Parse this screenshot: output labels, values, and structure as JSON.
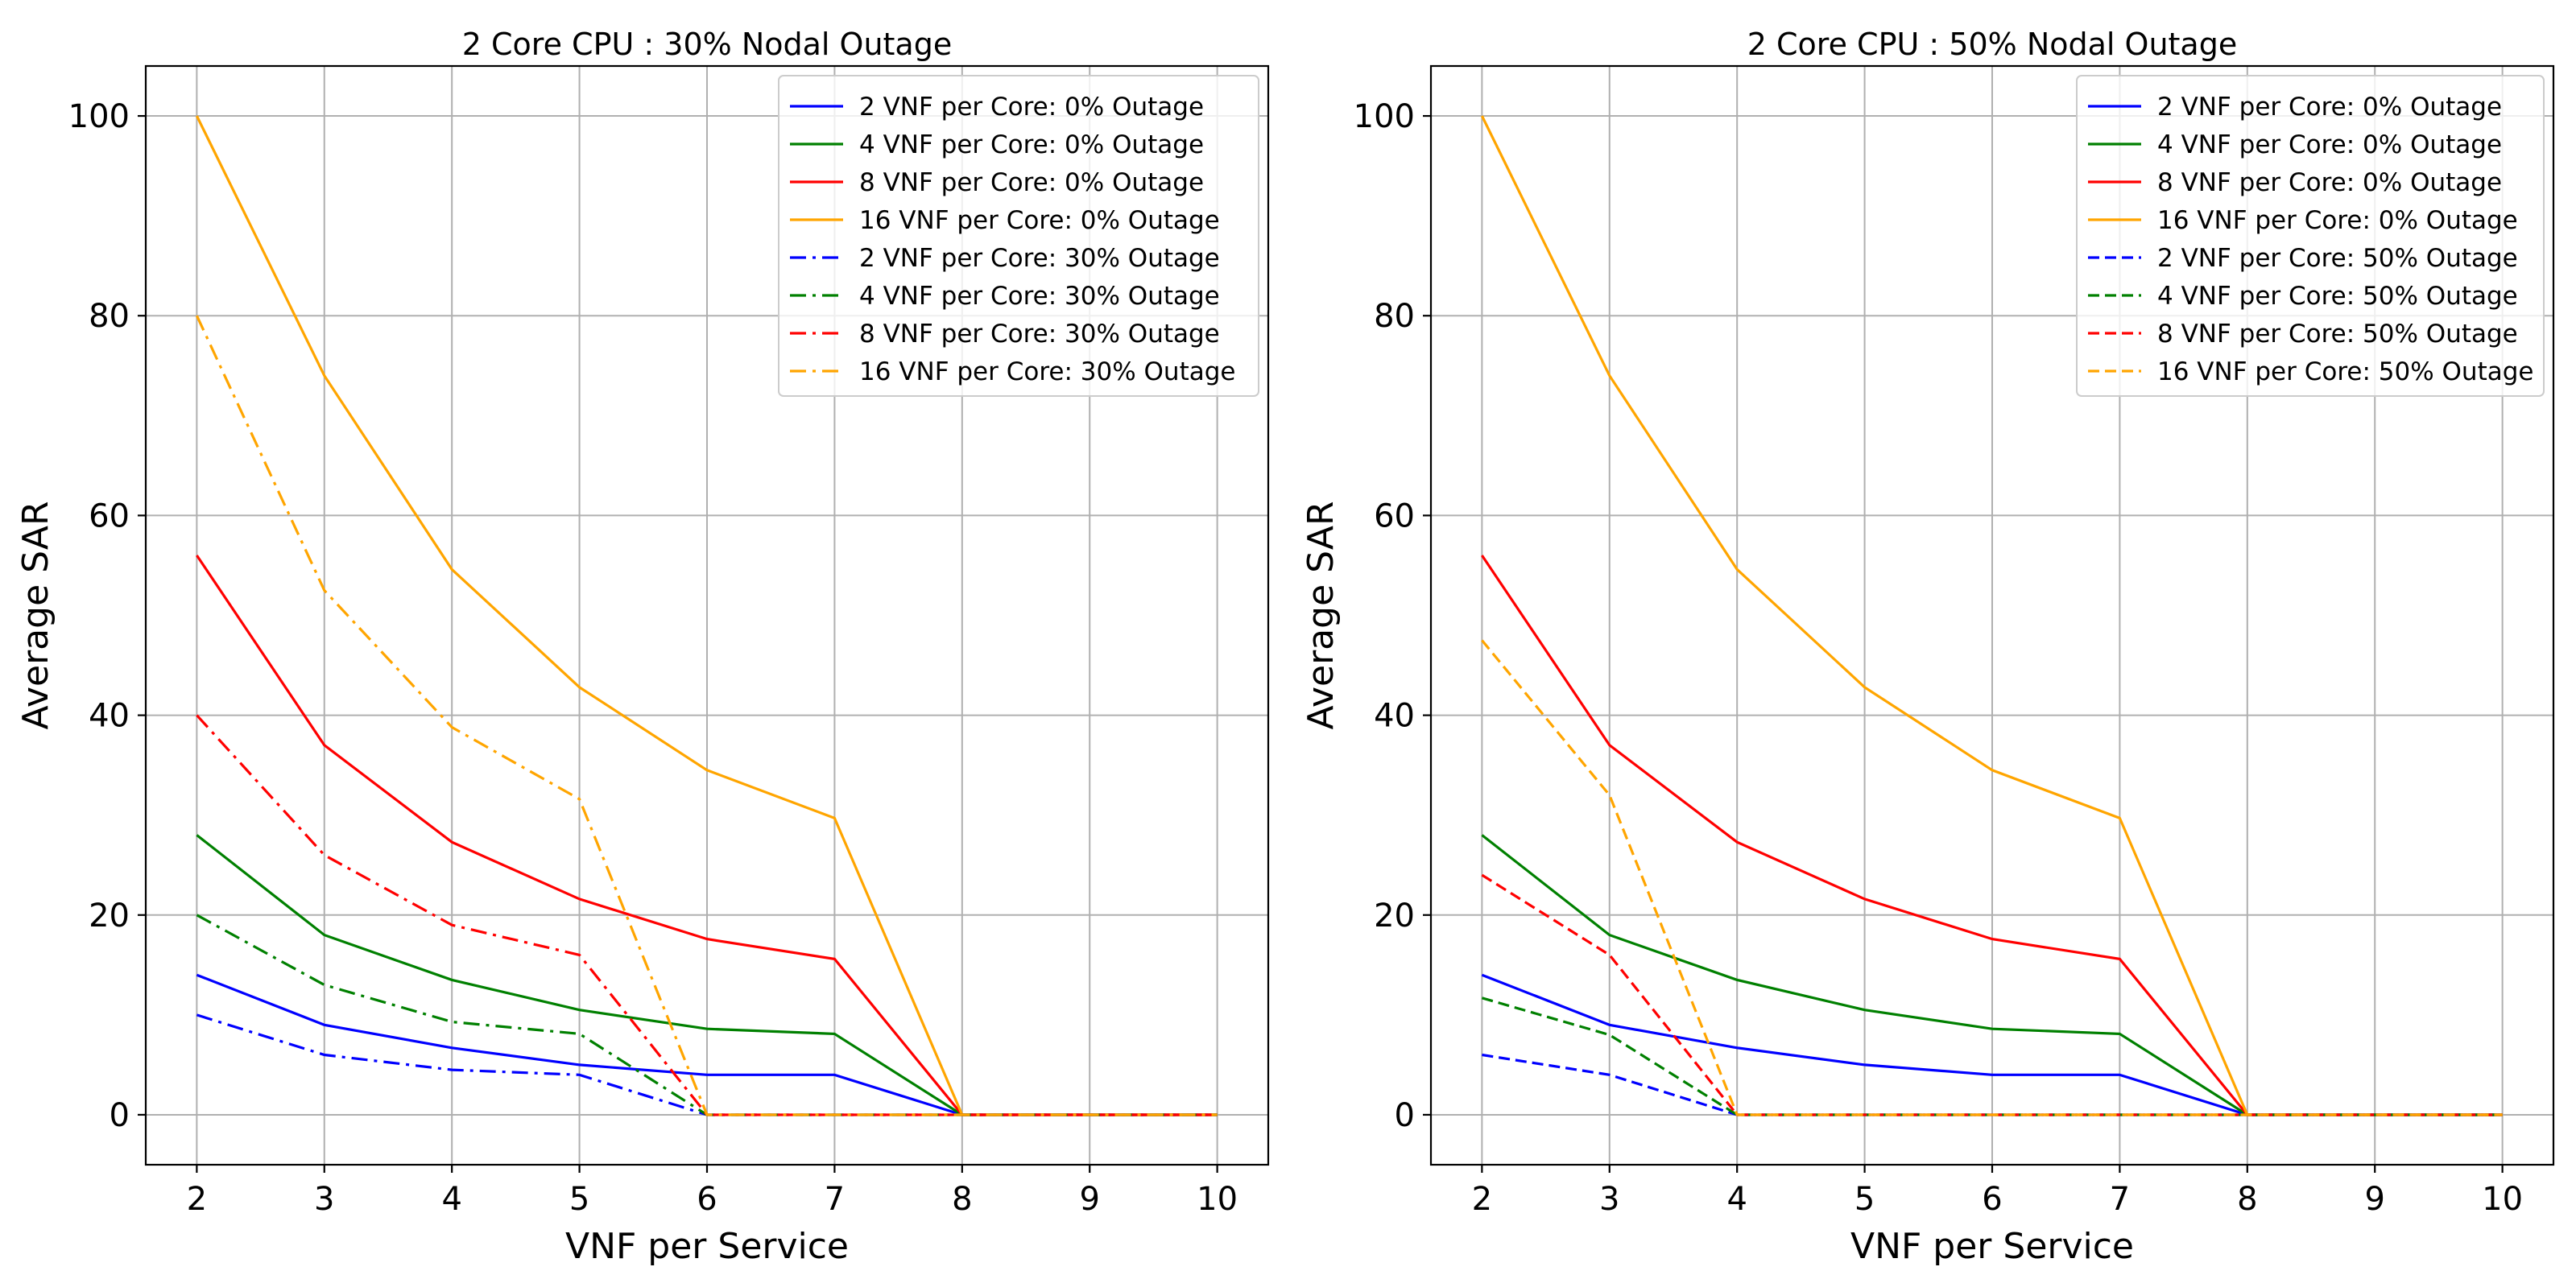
{
  "chart_data": [
    {
      "type": "line",
      "title": "2 Core CPU : 30% Nodal Outage",
      "xlabel": "VNF per Service",
      "ylabel": "Average SAR",
      "x": [
        2,
        3,
        4,
        5,
        6,
        7,
        8,
        9,
        10
      ],
      "xlim": [
        1.6,
        10.4
      ],
      "ylim": [
        -5,
        105
      ],
      "xticks": [
        "2",
        "3",
        "4",
        "5",
        "6",
        "7",
        "8",
        "9",
        "10"
      ],
      "yticks": [
        "0",
        "20",
        "40",
        "60",
        "80",
        "100"
      ],
      "grid": true,
      "legend_position": "top-right",
      "series": [
        {
          "name": "2 VNF per Core: 0% Outage",
          "color": "#0000ff",
          "style": "solid",
          "values": [
            14,
            9,
            6.7,
            5,
            4,
            4,
            0,
            0,
            0
          ]
        },
        {
          "name": "4 VNF per Core: 0% Outage",
          "color": "#008000",
          "style": "solid",
          "values": [
            28,
            18,
            13.5,
            10.5,
            8.6,
            8.1,
            0,
            0,
            0
          ]
        },
        {
          "name": "8 VNF per Core: 0% Outage",
          "color": "#ff0000",
          "style": "solid",
          "values": [
            56,
            37,
            27.3,
            21.6,
            17.6,
            15.6,
            0,
            0,
            0
          ]
        },
        {
          "name": "16 VNF per Core: 0% Outage",
          "color": "#ffa500",
          "style": "solid",
          "values": [
            100,
            74,
            54.6,
            42.8,
            34.5,
            29.7,
            0,
            0,
            0
          ]
        },
        {
          "name": "2 VNF per Core: 30% Outage",
          "color": "#0000ff",
          "style": "dashdot",
          "values": [
            10,
            6,
            4.5,
            4,
            0,
            0,
            0,
            0,
            0
          ]
        },
        {
          "name": "4 VNF per Core: 30% Outage",
          "color": "#008000",
          "style": "dashdot",
          "values": [
            20,
            13,
            9.3,
            8.1,
            0,
            0,
            0,
            0,
            0
          ]
        },
        {
          "name": "8 VNF per Core: 30% Outage",
          "color": "#ff0000",
          "style": "dashdot",
          "values": [
            40,
            26,
            19,
            16,
            0,
            0,
            0,
            0,
            0
          ]
        },
        {
          "name": "16 VNF per Core: 30% Outage",
          "color": "#ffa500",
          "style": "dashdot",
          "values": [
            80,
            52.5,
            38.8,
            31.6,
            0,
            0,
            0,
            0,
            0
          ]
        }
      ]
    },
    {
      "type": "line",
      "title": "2 Core CPU : 50% Nodal Outage",
      "xlabel": "VNF per Service",
      "ylabel": "Average SAR",
      "x": [
        2,
        3,
        4,
        5,
        6,
        7,
        8,
        9,
        10
      ],
      "xlim": [
        1.6,
        10.4
      ],
      "ylim": [
        -5,
        105
      ],
      "xticks": [
        "2",
        "3",
        "4",
        "5",
        "6",
        "7",
        "8",
        "9",
        "10"
      ],
      "yticks": [
        "0",
        "20",
        "40",
        "60",
        "80",
        "100"
      ],
      "grid": true,
      "legend_position": "top-right",
      "series": [
        {
          "name": "2 VNF per Core: 0% Outage",
          "color": "#0000ff",
          "style": "solid",
          "values": [
            14,
            9,
            6.7,
            5,
            4,
            4,
            0,
            0,
            0
          ]
        },
        {
          "name": "4 VNF per Core: 0% Outage",
          "color": "#008000",
          "style": "solid",
          "values": [
            28,
            18,
            13.5,
            10.5,
            8.6,
            8.1,
            0,
            0,
            0
          ]
        },
        {
          "name": "8 VNF per Core: 0% Outage",
          "color": "#ff0000",
          "style": "solid",
          "values": [
            56,
            37,
            27.3,
            21.6,
            17.6,
            15.6,
            0,
            0,
            0
          ]
        },
        {
          "name": "16 VNF per Core: 0% Outage",
          "color": "#ffa500",
          "style": "solid",
          "values": [
            100,
            74,
            54.6,
            42.8,
            34.5,
            29.7,
            0,
            0,
            0
          ]
        },
        {
          "name": "2 VNF per Core: 50% Outage",
          "color": "#0000ff",
          "style": "dashed",
          "values": [
            6,
            4,
            0,
            0,
            0,
            0,
            0,
            0,
            0
          ]
        },
        {
          "name": "4 VNF per Core: 50% Outage",
          "color": "#008000",
          "style": "dashed",
          "values": [
            11.7,
            8,
            0,
            0,
            0,
            0,
            0,
            0,
            0
          ]
        },
        {
          "name": "8 VNF per Core: 50% Outage",
          "color": "#ff0000",
          "style": "dashed",
          "values": [
            24,
            16,
            0,
            0,
            0,
            0,
            0,
            0,
            0
          ]
        },
        {
          "name": "16 VNF per Core: 50% Outage",
          "color": "#ffa500",
          "style": "dashed",
          "values": [
            47.5,
            32,
            0,
            0,
            0,
            0,
            0,
            0,
            0
          ]
        }
      ]
    }
  ]
}
